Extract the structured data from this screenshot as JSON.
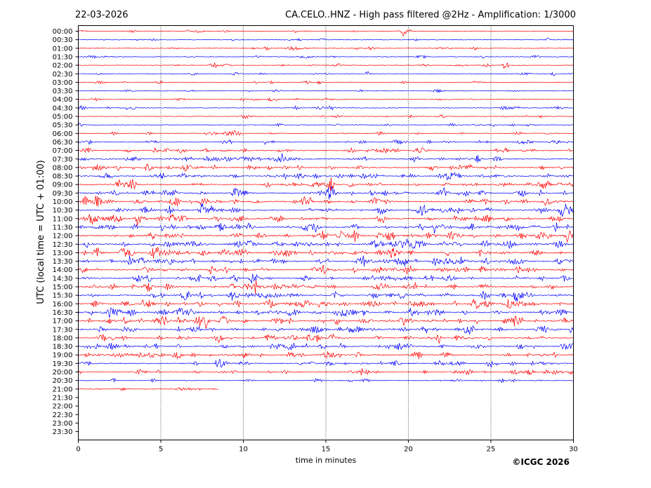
{
  "chart_data": {
    "type": "line",
    "date": "22-03-2026",
    "title": "CA.CELO..HNZ - High pass filtered @2Hz - Amplification: 1/3000",
    "xlabel": "time in minutes",
    "ylabel": "UTC (local time = UTC + 01:00)",
    "credit": "©ICGC 2026",
    "xlim": [
      0,
      30
    ],
    "x_ticks": [
      0,
      5,
      10,
      15,
      20,
      25,
      30
    ],
    "x_gridlines": [
      5,
      10,
      15,
      20,
      25
    ],
    "y_ticks": [
      "00:00",
      "00:30",
      "01:00",
      "01:30",
      "02:00",
      "02:30",
      "03:00",
      "03:30",
      "04:00",
      "04:30",
      "05:00",
      "05:30",
      "06:00",
      "06:30",
      "07:00",
      "07:30",
      "08:00",
      "08:30",
      "09:00",
      "09:30",
      "10:00",
      "10:30",
      "11:00",
      "11:30",
      "12:00",
      "12:30",
      "13:00",
      "13:30",
      "14:00",
      "14:30",
      "15:00",
      "15:30",
      "16:00",
      "16:30",
      "17:00",
      "17:30",
      "18:00",
      "18:30",
      "19:00",
      "19:30",
      "20:00",
      "20:30",
      "21:00",
      "21:30",
      "22:00",
      "22:30",
      "23:00",
      "23:30"
    ],
    "colors": {
      "even_rows": "#ff0000",
      "odd_rows": "#0000ff",
      "grid": "#000000"
    },
    "trace_rows": [
      {
        "label": "00:00",
        "color": "#ff0000",
        "end_minute": 30,
        "activity": 0.1
      },
      {
        "label": "00:30",
        "color": "#0000ff",
        "end_minute": 30,
        "activity": 0.1
      },
      {
        "label": "01:00",
        "color": "#ff0000",
        "end_minute": 30,
        "activity": 0.15
      },
      {
        "label": "01:30",
        "color": "#0000ff",
        "end_minute": 30,
        "activity": 0.15
      },
      {
        "label": "02:00",
        "color": "#ff0000",
        "end_minute": 30,
        "activity": 0.15
      },
      {
        "label": "02:30",
        "color": "#0000ff",
        "end_minute": 30,
        "activity": 0.12
      },
      {
        "label": "03:00",
        "color": "#ff0000",
        "end_minute": 30,
        "activity": 0.1
      },
      {
        "label": "03:30",
        "color": "#0000ff",
        "end_minute": 30,
        "activity": 0.08
      },
      {
        "label": "04:00",
        "color": "#ff0000",
        "end_minute": 30,
        "activity": 0.12
      },
      {
        "label": "04:30",
        "color": "#0000ff",
        "end_minute": 30,
        "activity": 0.15
      },
      {
        "label": "05:00",
        "color": "#ff0000",
        "end_minute": 30,
        "activity": 0.12
      },
      {
        "label": "05:30",
        "color": "#0000ff",
        "end_minute": 30,
        "activity": 0.15
      },
      {
        "label": "06:00",
        "color": "#ff0000",
        "end_minute": 30,
        "activity": 0.2
      },
      {
        "label": "06:30",
        "color": "#0000ff",
        "end_minute": 30,
        "activity": 0.35
      },
      {
        "label": "07:00",
        "color": "#ff0000",
        "end_minute": 30,
        "activity": 0.45
      },
      {
        "label": "07:30",
        "color": "#0000ff",
        "end_minute": 30,
        "activity": 0.5
      },
      {
        "label": "08:00",
        "color": "#ff0000",
        "end_minute": 30,
        "activity": 0.55
      },
      {
        "label": "08:30",
        "color": "#0000ff",
        "end_minute": 30,
        "activity": 0.55
      },
      {
        "label": "09:00",
        "color": "#ff0000",
        "end_minute": 30,
        "activity": 0.6
      },
      {
        "label": "09:30",
        "color": "#0000ff",
        "end_minute": 30,
        "activity": 0.6
      },
      {
        "label": "10:00",
        "color": "#ff0000",
        "end_minute": 30,
        "activity": 0.65
      },
      {
        "label": "10:30",
        "color": "#0000ff",
        "end_minute": 30,
        "activity": 0.7
      },
      {
        "label": "11:00",
        "color": "#ff0000",
        "end_minute": 30,
        "activity": 0.7
      },
      {
        "label": "11:30",
        "color": "#0000ff",
        "end_minute": 30,
        "activity": 0.75
      },
      {
        "label": "12:00",
        "color": "#ff0000",
        "end_minute": 30,
        "activity": 0.75
      },
      {
        "label": "12:30",
        "color": "#0000ff",
        "end_minute": 30,
        "activity": 0.75
      },
      {
        "label": "13:00",
        "color": "#ff0000",
        "end_minute": 30,
        "activity": 0.75
      },
      {
        "label": "13:30",
        "color": "#0000ff",
        "end_minute": 30,
        "activity": 0.7
      },
      {
        "label": "14:00",
        "color": "#ff0000",
        "end_minute": 30,
        "activity": 0.6
      },
      {
        "label": "14:30",
        "color": "#0000ff",
        "end_minute": 30,
        "activity": 0.6
      },
      {
        "label": "15:00",
        "color": "#ff0000",
        "end_minute": 30,
        "activity": 0.65
      },
      {
        "label": "15:30",
        "color": "#0000ff",
        "end_minute": 30,
        "activity": 0.7
      },
      {
        "label": "16:00",
        "color": "#ff0000",
        "end_minute": 30,
        "activity": 0.75
      },
      {
        "label": "16:30",
        "color": "#0000ff",
        "end_minute": 30,
        "activity": 0.75
      },
      {
        "label": "17:00",
        "color": "#ff0000",
        "end_minute": 30,
        "activity": 0.7
      },
      {
        "label": "17:30",
        "color": "#0000ff",
        "end_minute": 30,
        "activity": 0.65
      },
      {
        "label": "18:00",
        "color": "#ff0000",
        "end_minute": 30,
        "activity": 0.6
      },
      {
        "label": "18:30",
        "color": "#0000ff",
        "end_minute": 30,
        "activity": 0.6
      },
      {
        "label": "19:00",
        "color": "#ff0000",
        "end_minute": 30,
        "activity": 0.6
      },
      {
        "label": "19:30",
        "color": "#0000ff",
        "end_minute": 30,
        "activity": 0.5
      },
      {
        "label": "20:00",
        "color": "#ff0000",
        "end_minute": 30,
        "activity": 0.4
      },
      {
        "label": "20:30",
        "color": "#0000ff",
        "end_minute": 30,
        "activity": 0.2
      },
      {
        "label": "21:00",
        "color": "#ff0000",
        "end_minute": 8.5,
        "activity": 0.05
      }
    ]
  }
}
